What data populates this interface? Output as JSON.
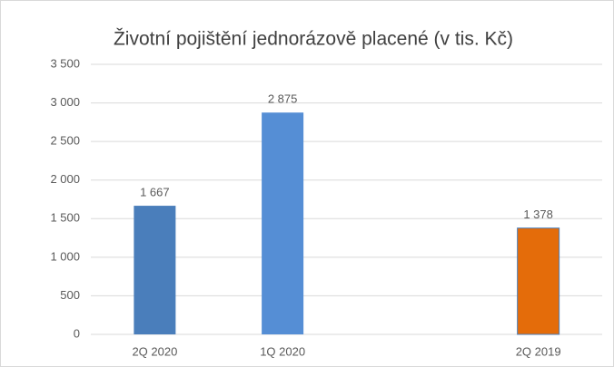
{
  "chart_data": {
    "type": "bar",
    "title": "Životní pojištění jednorázově placené (v tis. Kč)",
    "categories": [
      "2Q 2020",
      "1Q 2020",
      null,
      "2Q 2019"
    ],
    "values": [
      1667,
      2875,
      null,
      1378
    ],
    "value_labels": [
      "1 667",
      "2 875",
      null,
      "1 378"
    ],
    "colors": [
      "#4a7ebb",
      "#558ed5",
      null,
      "#e46c0a"
    ],
    "ylim": [
      0,
      3500
    ],
    "yticks": [
      0,
      500,
      {
        "value": 1000,
        "label": "1 000"
      },
      {
        "value": 1500,
        "label": "1 500"
      },
      {
        "value": 2000,
        "label": "2 000"
      },
      {
        "value": 2500,
        "label": "2 500"
      },
      {
        "value": 3000,
        "label": "3 000"
      },
      {
        "value": 3500,
        "label": "3 500"
      }
    ],
    "grid": true
  }
}
